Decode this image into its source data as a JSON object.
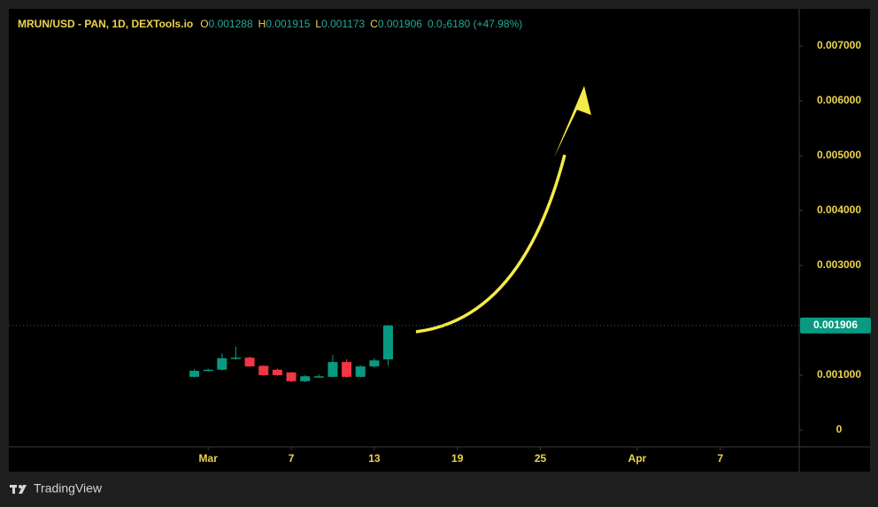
{
  "chart_data": {
    "type": "candlestick",
    "title": "MRUN/USD - PAN, 1D, DEXTools.io",
    "ohlc_labels": [
      "O",
      "H",
      "L",
      "C"
    ],
    "change_label": "0.0₃6180 (+47.98%)",
    "x": [
      -1,
      0,
      1,
      2,
      3,
      4,
      5,
      6,
      7,
      8,
      9,
      10,
      11,
      12,
      13
    ],
    "open": [
      0.00097,
      0.00108,
      0.0011,
      0.00131,
      0.00132,
      0.00117,
      0.0011,
      0.00105,
      0.00089,
      0.00096,
      0.00097,
      0.00124,
      0.00097,
      0.00116,
      0.001288
    ],
    "high": [
      0.00111,
      0.00112,
      0.0014,
      0.00152,
      0.00134,
      0.00118,
      0.00112,
      0.00106,
      0.001,
      0.00101,
      0.00137,
      0.00129,
      0.00118,
      0.00131,
      0.001915
    ],
    "low": [
      0.00096,
      0.00107,
      0.00108,
      0.00128,
      0.00115,
      0.00099,
      0.00099,
      0.00087,
      0.00087,
      0.00095,
      0.00096,
      0.00095,
      0.00096,
      0.00114,
      0.001173
    ],
    "close": [
      0.00108,
      0.0011,
      0.00131,
      0.00132,
      0.00116,
      0.001,
      0.001,
      0.00089,
      0.00098,
      0.00098,
      0.00124,
      0.00097,
      0.00116,
      0.00127,
      0.001906
    ],
    "up_color": "#089981",
    "down_color": "#f23645",
    "xlim": [
      -14.4,
      42.7
    ],
    "xticks": [
      {
        "value": 0,
        "label": "Mar"
      },
      6,
      12,
      18,
      24,
      {
        "value": 31,
        "label": "Apr"
      },
      37
    ],
    "xtick_labels": [
      "Mar",
      "7",
      "13",
      "19",
      "25",
      "Apr",
      "7"
    ],
    "ylim": [
      -0.000306,
      0.007677
    ],
    "yticks": [
      0,
      {
        "value": 0.001,
        "label": "0.001000"
      },
      {
        "value": 0.003,
        "label": "0.003000"
      },
      {
        "value": 0.004,
        "label": "0.004000"
      },
      {
        "value": 0.005,
        "label": "0.005000"
      },
      {
        "value": 0.006,
        "label": "0.006000"
      },
      {
        "value": 0.007,
        "label": "0.007000"
      }
    ],
    "grid": false,
    "brand": "TradingView"
  }
}
